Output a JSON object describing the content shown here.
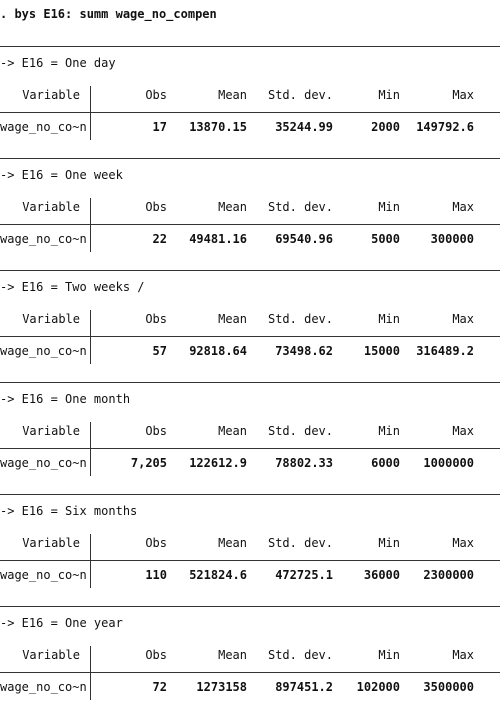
{
  "command": ". bys E16: summ wage_no_compen",
  "headers": {
    "variable": "Variable",
    "obs": "Obs",
    "mean": "Mean",
    "sd": "Std. dev.",
    "min": "Min",
    "max": "Max"
  },
  "groups": [
    {
      "title": "-> E16 = One day",
      "var": "wage_no_co~n",
      "obs": "17",
      "mean": "13870.15",
      "sd": "35244.99",
      "min": "2000",
      "max": "149792.6"
    },
    {
      "title": "-> E16 = One week",
      "var": "wage_no_co~n",
      "obs": "22",
      "mean": "49481.16",
      "sd": "69540.96",
      "min": "5000",
      "max": "300000"
    },
    {
      "title": "-> E16 = Two weeks /",
      "var": "wage_no_co~n",
      "obs": "57",
      "mean": "92818.64",
      "sd": "73498.62",
      "min": "15000",
      "max": "316489.2"
    },
    {
      "title": "-> E16 = One month",
      "var": "wage_no_co~n",
      "obs": "7,205",
      "mean": "122612.9",
      "sd": "78802.33",
      "min": "6000",
      "max": "1000000"
    },
    {
      "title": "-> E16 = Six months",
      "var": "wage_no_co~n",
      "obs": "110",
      "mean": "521824.6",
      "sd": "472725.1",
      "min": "36000",
      "max": "2300000"
    },
    {
      "title": "-> E16 = One year",
      "var": "wage_no_co~n",
      "obs": "72",
      "mean": "1273158",
      "sd": "897451.2",
      "min": "102000",
      "max": "3500000"
    }
  ]
}
